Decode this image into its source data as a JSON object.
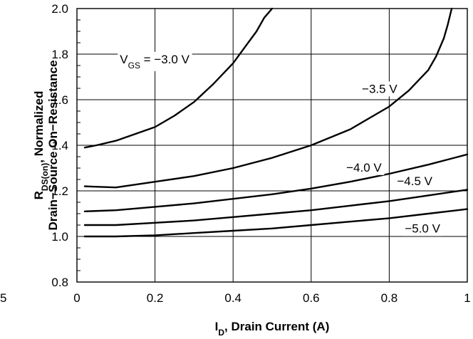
{
  "chart_data": {
    "type": "line",
    "xlabel_main": "I",
    "xlabel_sub": "D",
    "xlabel_rest": ", Drain Current (A)",
    "ylabel_line1_main": "R",
    "ylabel_line1_sub": "DS(on)",
    "ylabel_line1_rest": ", Normalized",
    "ylabel_line2": "Drain−Source On−Resistance",
    "xlim": [
      0,
      1
    ],
    "ylim": [
      0.8,
      2.0
    ],
    "x_ticks": [
      "0",
      "0.2",
      "0.4",
      "0.6",
      "0.8",
      "1"
    ],
    "y_ticks": [
      "0.8",
      "1.0",
      "1.2",
      "1.4",
      "1.6",
      "1.8",
      "2.0"
    ],
    "left_edge_fragments": [
      "5"
    ],
    "grid": true,
    "series": [
      {
        "name": "−3.0 V",
        "label_main": "V",
        "label_sub": "GS",
        "label_rest": " = −3.0 V",
        "points": [
          [
            0.02,
            1.39
          ],
          [
            0.05,
            1.4
          ],
          [
            0.1,
            1.42
          ],
          [
            0.15,
            1.45
          ],
          [
            0.2,
            1.48
          ],
          [
            0.25,
            1.53
          ],
          [
            0.3,
            1.59
          ],
          [
            0.35,
            1.67
          ],
          [
            0.4,
            1.76
          ],
          [
            0.43,
            1.83
          ],
          [
            0.46,
            1.9
          ],
          [
            0.48,
            1.96
          ],
          [
            0.5,
            2.0
          ]
        ]
      },
      {
        "name": "−3.5 V",
        "points": [
          [
            0.02,
            1.22
          ],
          [
            0.1,
            1.215
          ],
          [
            0.2,
            1.24
          ],
          [
            0.3,
            1.265
          ],
          [
            0.4,
            1.3
          ],
          [
            0.5,
            1.345
          ],
          [
            0.6,
            1.4
          ],
          [
            0.7,
            1.47
          ],
          [
            0.8,
            1.57
          ],
          [
            0.85,
            1.64
          ],
          [
            0.9,
            1.73
          ],
          [
            0.92,
            1.79
          ],
          [
            0.94,
            1.87
          ],
          [
            0.95,
            1.93
          ],
          [
            0.96,
            2.0
          ]
        ]
      },
      {
        "name": "−4.0 V",
        "points": [
          [
            0.02,
            1.11
          ],
          [
            0.1,
            1.115
          ],
          [
            0.2,
            1.13
          ],
          [
            0.3,
            1.145
          ],
          [
            0.4,
            1.165
          ],
          [
            0.5,
            1.185
          ],
          [
            0.6,
            1.21
          ],
          [
            0.7,
            1.24
          ],
          [
            0.8,
            1.275
          ],
          [
            0.9,
            1.315
          ],
          [
            1.0,
            1.36
          ]
        ]
      },
      {
        "name": "−4.5 V",
        "points": [
          [
            0.02,
            1.05
          ],
          [
            0.1,
            1.05
          ],
          [
            0.2,
            1.06
          ],
          [
            0.3,
            1.07
          ],
          [
            0.4,
            1.085
          ],
          [
            0.5,
            1.1
          ],
          [
            0.6,
            1.115
          ],
          [
            0.7,
            1.135
          ],
          [
            0.8,
            1.155
          ],
          [
            0.9,
            1.18
          ],
          [
            1.0,
            1.205
          ]
        ]
      },
      {
        "name": "−5.0 V",
        "points": [
          [
            0.02,
            1.0
          ],
          [
            0.1,
            1.0
          ],
          [
            0.2,
            1.005
          ],
          [
            0.3,
            1.015
          ],
          [
            0.4,
            1.025
          ],
          [
            0.5,
            1.035
          ],
          [
            0.6,
            1.05
          ],
          [
            0.7,
            1.065
          ],
          [
            0.8,
            1.08
          ],
          [
            0.9,
            1.1
          ],
          [
            1.0,
            1.12
          ]
        ]
      }
    ]
  }
}
